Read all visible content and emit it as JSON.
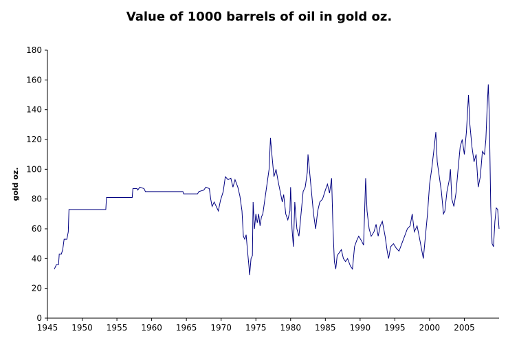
{
  "chart_data": {
    "type": "line",
    "title": "Value of 1000 barrels of oil in gold oz.",
    "y_label": "gold oz.",
    "xlim": [
      1945,
      2010
    ],
    "xticks": [
      1945,
      1950,
      1955,
      1960,
      1965,
      1970,
      1975,
      1980,
      1985,
      1990,
      1995,
      2000,
      2005
    ],
    "ylim": [
      0,
      180
    ],
    "yticks": [
      0,
      20,
      40,
      60,
      80,
      100,
      120,
      140,
      160,
      180
    ],
    "grid": false,
    "x": [
      1946.0,
      1946.3,
      1946.6,
      1946.7,
      1947.0,
      1947.2,
      1947.4,
      1947.8,
      1948.0,
      1948.1,
      1953.4,
      1953.5,
      1957.2,
      1957.3,
      1957.9,
      1958.0,
      1958.3,
      1958.9,
      1959.1,
      1964.5,
      1964.6,
      1966.6,
      1966.8,
      1967.5,
      1967.8,
      1968.3,
      1968.5,
      1968.7,
      1969.0,
      1969.3,
      1969.6,
      1969.9,
      1970.3,
      1970.6,
      1971.0,
      1971.4,
      1971.7,
      1972.0,
      1972.4,
      1972.7,
      1973.0,
      1973.2,
      1973.4,
      1973.6,
      1973.8,
      1974.0,
      1974.1,
      1974.3,
      1974.5,
      1974.6,
      1974.8,
      1975.0,
      1975.2,
      1975.4,
      1975.6,
      1975.8,
      1976.0,
      1976.3,
      1976.6,
      1976.9,
      1977.1,
      1977.3,
      1977.6,
      1977.9,
      1978.2,
      1978.5,
      1978.8,
      1979.0,
      1979.3,
      1979.6,
      1979.9,
      1980.0,
      1980.2,
      1980.4,
      1980.6,
      1980.9,
      1981.2,
      1981.5,
      1981.8,
      1982.1,
      1982.4,
      1982.5,
      1982.7,
      1983.0,
      1983.3,
      1983.6,
      1983.9,
      1984.2,
      1984.6,
      1985.0,
      1985.3,
      1985.6,
      1985.9,
      1986.1,
      1986.3,
      1986.5,
      1986.7,
      1987.0,
      1987.3,
      1987.6,
      1987.9,
      1988.2,
      1988.6,
      1988.9,
      1989.2,
      1989.5,
      1989.8,
      1990.2,
      1990.5,
      1990.8,
      1991.0,
      1991.3,
      1991.6,
      1992.0,
      1992.3,
      1992.6,
      1992.9,
      1993.2,
      1993.6,
      1993.9,
      1994.1,
      1994.4,
      1994.8,
      1995.2,
      1995.6,
      1996.0,
      1996.4,
      1996.8,
      1997.2,
      1997.5,
      1997.8,
      1998.2,
      1998.5,
      1998.9,
      1999.1,
      1999.4,
      1999.7,
      2000.0,
      2000.3,
      2000.6,
      2000.9,
      2001.1,
      2001.4,
      2001.7,
      2002.0,
      2002.2,
      2002.5,
      2002.8,
      2003.0,
      2003.2,
      2003.5,
      2003.8,
      2004.1,
      2004.4,
      2004.7,
      2005.0,
      2005.3,
      2005.6,
      2005.8,
      2006.1,
      2006.4,
      2006.7,
      2007.0,
      2007.3,
      2007.6,
      2007.9,
      2008.1,
      2008.3,
      2008.45,
      2008.6,
      2008.8,
      2009.0,
      2009.2,
      2009.4,
      2009.6,
      2009.8,
      2010.0
    ],
    "series": [
      {
        "name": "gold oz.",
        "color": "#000080",
        "values": [
          33,
          36,
          36,
          43,
          43,
          46,
          53,
          53,
          58,
          73,
          73,
          81,
          81,
          87,
          87,
          86,
          88,
          87,
          85,
          85,
          83.5,
          83.5,
          85,
          86,
          88,
          87,
          80,
          75,
          78,
          75,
          72,
          79,
          85,
          95,
          93,
          94,
          88,
          93,
          88,
          82,
          72,
          55,
          53,
          56,
          45,
          35,
          29,
          40,
          42,
          78,
          60,
          70,
          64,
          70,
          62,
          68,
          70,
          80,
          90,
          100,
          121,
          110,
          95,
          100,
          92,
          85,
          78,
          83,
          70,
          66,
          72,
          88,
          60,
          48,
          78,
          60,
          55,
          70,
          85,
          88,
          98,
          110,
          100,
          85,
          70,
          60,
          72,
          78,
          80,
          86,
          90,
          84,
          94,
          60,
          38,
          33,
          42,
          44,
          46,
          40,
          38,
          40,
          35,
          33,
          48,
          52,
          55,
          52,
          49,
          94,
          72,
          60,
          55,
          58,
          63,
          55,
          62,
          65,
          55,
          45,
          40,
          48,
          50,
          47,
          45,
          50,
          55,
          60,
          62,
          70,
          58,
          62,
          55,
          45,
          40,
          55,
          70,
          90,
          100,
          112,
          125,
          105,
          95,
          85,
          70,
          72,
          85,
          92,
          100,
          80,
          75,
          84,
          100,
          115,
          120,
          110,
          125,
          150,
          130,
          115,
          105,
          110,
          88,
          95,
          112,
          110,
          120,
          143,
          157,
          135,
          75,
          50,
          48,
          65,
          74,
          73,
          60
        ]
      }
    ]
  }
}
